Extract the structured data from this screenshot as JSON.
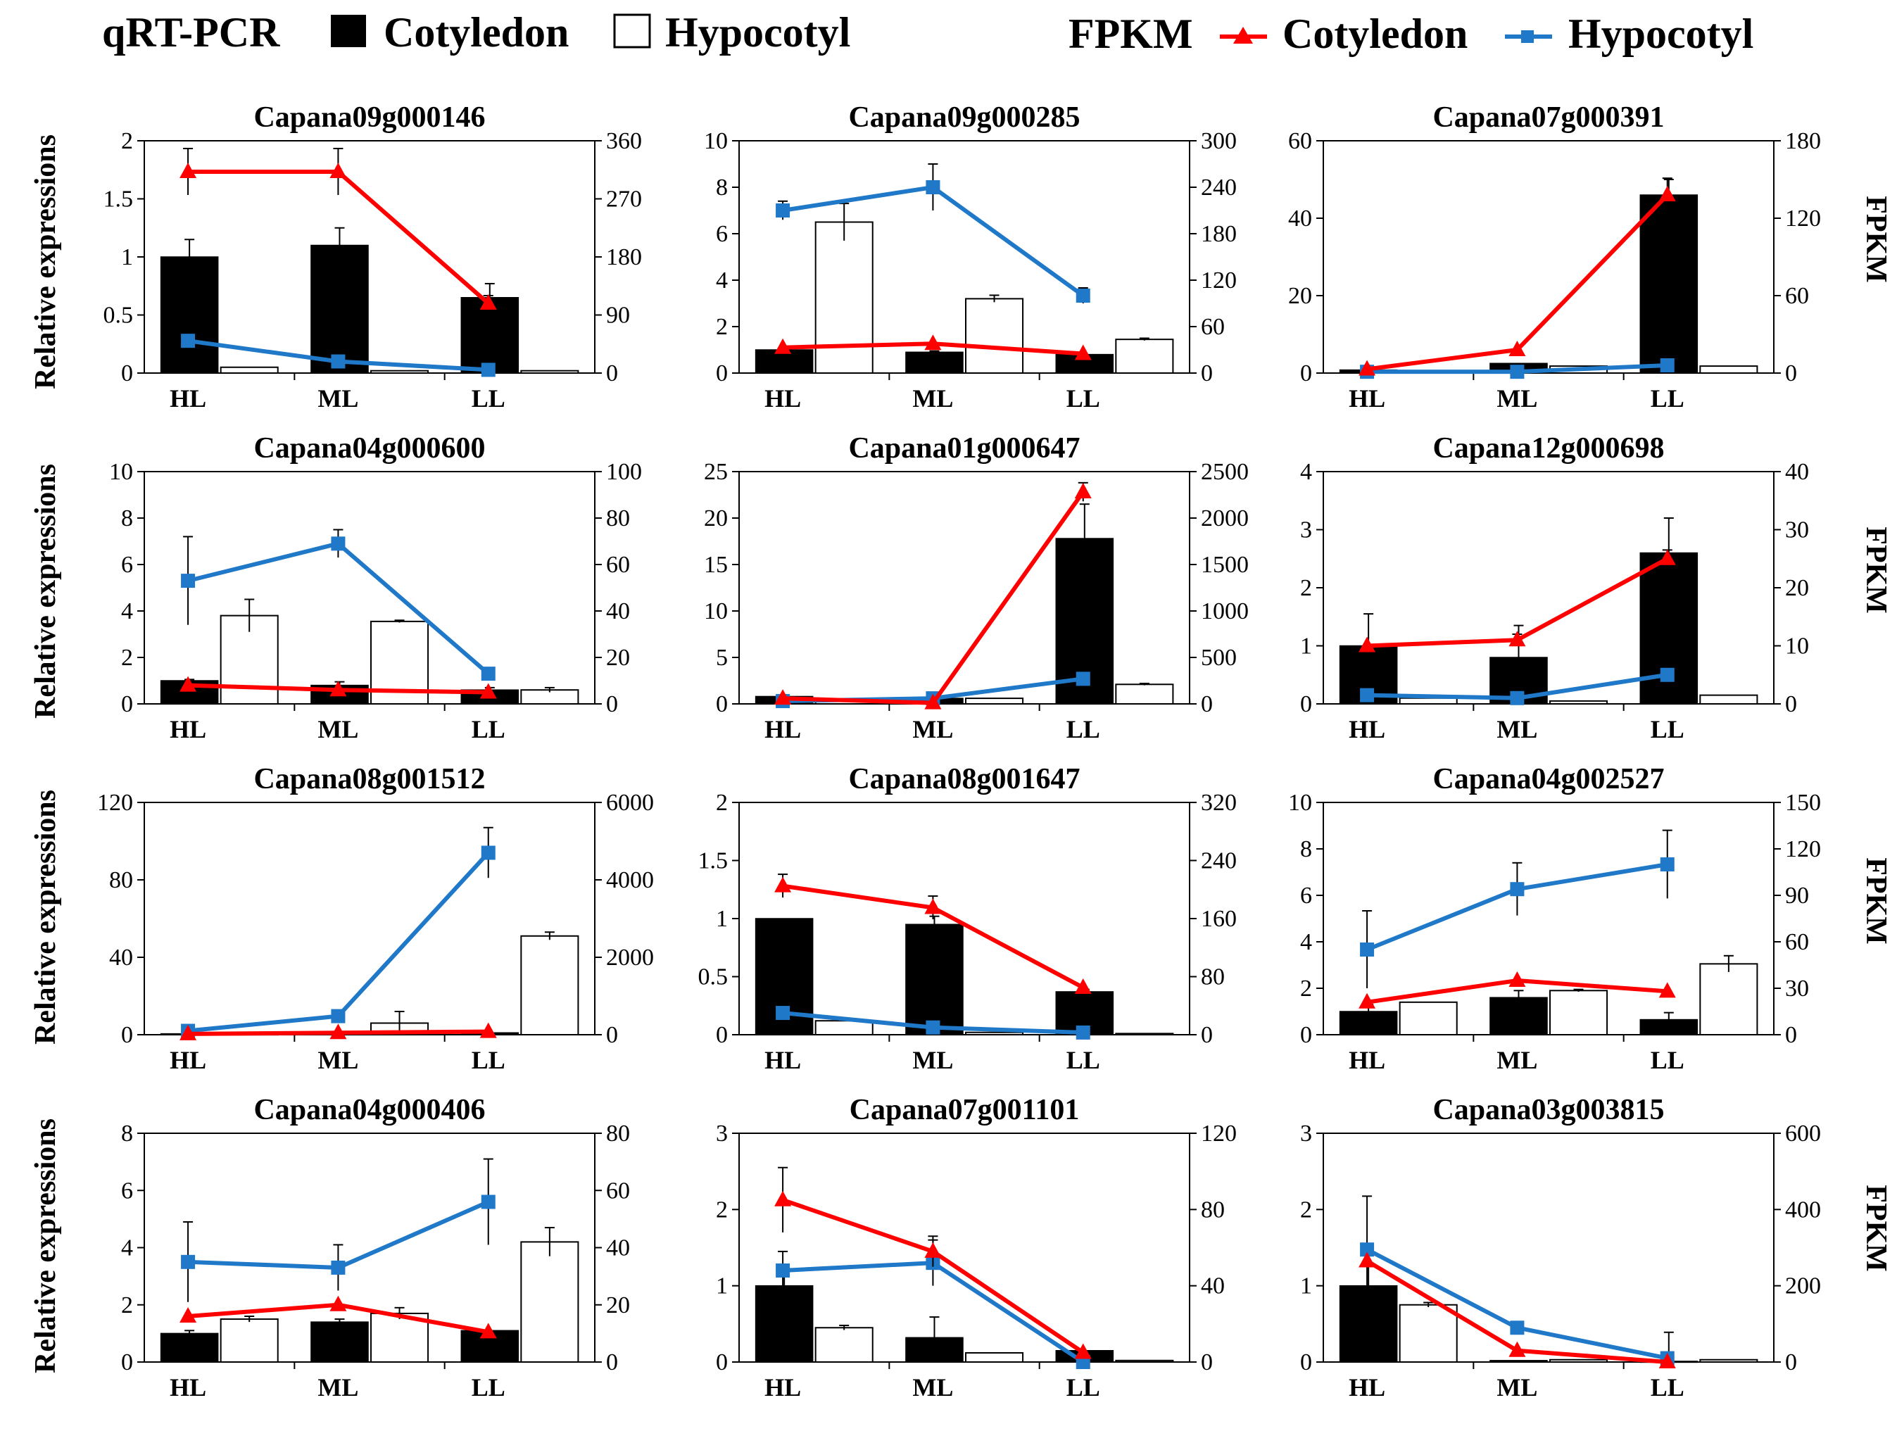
{
  "legend": {
    "qrt_label": "qRT-PCR",
    "qrt_cotyledon": "Cotyledon",
    "qrt_hypocotyl": "Hypocotyl",
    "fpkm_label": "FPKM",
    "fpkm_cotyledon": "Cotyledon",
    "fpkm_hypocotyl": "Hypocotyl"
  },
  "y_left_label": "Relative expressions",
  "y_right_label": "FPKM",
  "colors": {
    "cotyledon_bar": "#000000",
    "hypocotyl_bar": "#ffffff",
    "cotyledon_line": "#ff0000",
    "hypocotyl_line": "#1f78c8"
  },
  "chart_data": [
    {
      "type": "bar+line",
      "title": "Capana09g000146",
      "categories": [
        "HL",
        "ML",
        "LL"
      ],
      "ylim": [
        0,
        2
      ],
      "yticks": [
        "0",
        "0.5",
        "1",
        "1.5",
        "2"
      ],
      "y2lim": [
        0,
        360
      ],
      "y2ticks": [
        "0",
        "90",
        "180",
        "270",
        "360"
      ],
      "series": [
        {
          "name": "qRT-PCR Cotyledon",
          "values": [
            1.0,
            1.1,
            0.65
          ],
          "err": [
            0.15,
            0.15,
            0.12
          ]
        },
        {
          "name": "qRT-PCR Hypocotyl",
          "values": [
            0.05,
            0.02,
            0.02
          ],
          "err": [
            0,
            0,
            0
          ]
        },
        {
          "name": "FPKM Cotyledon",
          "values": [
            312,
            312,
            108
          ],
          "err": [
            36,
            36,
            12
          ]
        },
        {
          "name": "FPKM Hypocotyl",
          "values": [
            50,
            18,
            5
          ],
          "err": [
            0,
            0,
            0
          ]
        }
      ]
    },
    {
      "type": "bar+line",
      "title": "Capana09g000285",
      "categories": [
        "HL",
        "ML",
        "LL"
      ],
      "ylim": [
        0,
        10
      ],
      "yticks": [
        "0",
        "2",
        "4",
        "6",
        "8",
        "10"
      ],
      "y2lim": [
        0,
        300
      ],
      "y2ticks": [
        "0",
        "60",
        "120",
        "180",
        "240",
        "300"
      ],
      "series": [
        {
          "name": "qRT-PCR Cotyledon",
          "values": [
            1.0,
            0.9,
            0.8
          ],
          "err": [
            0,
            0.05,
            0
          ],
          "dummy": 0
        },
        {
          "name": "qRT-PCR Hypocotyl",
          "values": [
            6.5,
            3.2,
            1.45
          ],
          "err": [
            0.8,
            0.15,
            0.05
          ]
        },
        {
          "name": "FPKM Cotyledon",
          "values": [
            33,
            38,
            25
          ],
          "err": [
            0,
            0,
            0
          ]
        },
        {
          "name": "FPKM Hypocotyl",
          "values": [
            210,
            240,
            100
          ],
          "err": [
            12,
            30,
            10
          ]
        }
      ]
    },
    {
      "type": "bar+line",
      "title": "Capana07g000391",
      "categories": [
        "HL",
        "ML",
        "LL"
      ],
      "ylim": [
        0,
        60
      ],
      "yticks": [
        "0",
        "20",
        "40",
        "60"
      ],
      "y2lim": [
        0,
        180
      ],
      "y2ticks": [
        "0",
        "60",
        "120",
        "180"
      ],
      "series": [
        {
          "name": "qRT-PCR Cotyledon",
          "values": [
            0.8,
            2.5,
            46
          ],
          "err": [
            0,
            0,
            4
          ]
        },
        {
          "name": "qRT-PCR Hypocotyl",
          "values": [
            0.3,
            1.8,
            1.8
          ],
          "err": [
            0,
            0,
            0
          ]
        },
        {
          "name": "FPKM Cotyledon",
          "values": [
            3,
            18,
            138
          ],
          "err": [
            0,
            0,
            13
          ]
        },
        {
          "name": "FPKM Hypocotyl",
          "values": [
            1,
            1,
            6
          ],
          "err": [
            0,
            0,
            0
          ]
        }
      ]
    },
    {
      "type": "bar+line",
      "title": "Capana04g000600",
      "categories": [
        "HL",
        "ML",
        "LL"
      ],
      "ylim": [
        0,
        10
      ],
      "yticks": [
        "0",
        "2",
        "4",
        "6",
        "8",
        "10"
      ],
      "y2lim": [
        0,
        100
      ],
      "y2ticks": [
        "0",
        "20",
        "40",
        "60",
        "80",
        "100"
      ],
      "series": [
        {
          "name": "qRT-PCR Cotyledon",
          "values": [
            1.0,
            0.8,
            0.6
          ],
          "err": [
            0.05,
            0.15,
            0.1
          ]
        },
        {
          "name": "qRT-PCR Hypocotyl",
          "values": [
            3.8,
            3.55,
            0.6
          ],
          "err": [
            0.7,
            0.05,
            0.1
          ]
        },
        {
          "name": "FPKM Cotyledon",
          "values": [
            8,
            6,
            5
          ],
          "err": [
            0,
            0,
            0
          ]
        },
        {
          "name": "FPKM Hypocotyl",
          "values": [
            53,
            69,
            13
          ],
          "err": [
            19,
            6,
            0
          ]
        }
      ]
    },
    {
      "type": "bar+line",
      "title": "Capana01g000647",
      "categories": [
        "HL",
        "ML",
        "LL"
      ],
      "ylim": [
        0,
        25
      ],
      "yticks": [
        "0",
        "5",
        "10",
        "15",
        "20",
        "25"
      ],
      "y2lim": [
        0,
        2500
      ],
      "y2ticks": [
        "0",
        "500",
        "1000",
        "1500",
        "2000",
        "2500"
      ],
      "series": [
        {
          "name": "qRT-PCR Cotyledon",
          "values": [
            0.8,
            0.6,
            17.8
          ],
          "err": [
            0,
            0.2,
            3.7
          ]
        },
        {
          "name": "qRT-PCR Hypocotyl",
          "values": [
            0.5,
            0.6,
            2.1
          ],
          "err": [
            0,
            0,
            0.1
          ]
        },
        {
          "name": "FPKM Cotyledon",
          "values": [
            60,
            10,
            2280
          ],
          "err": [
            0,
            0,
            100
          ]
        },
        {
          "name": "FPKM Hypocotyl",
          "values": [
            30,
            60,
            270
          ],
          "err": [
            0,
            0,
            0
          ]
        }
      ]
    },
    {
      "type": "bar+line",
      "title": "Capana12g000698",
      "categories": [
        "HL",
        "ML",
        "LL"
      ],
      "ylim": [
        0,
        4
      ],
      "yticks": [
        "0",
        "1",
        "2",
        "3",
        "4"
      ],
      "y2lim": [
        0,
        40
      ],
      "y2ticks": [
        "0",
        "10",
        "20",
        "30",
        "40"
      ],
      "series": [
        {
          "name": "qRT-PCR Cotyledon",
          "values": [
            1.0,
            0.8,
            2.6
          ],
          "err": [
            0.55,
            0.55,
            0.6
          ]
        },
        {
          "name": "qRT-PCR Hypocotyl",
          "values": [
            0.1,
            0.05,
            0.15
          ],
          "err": [
            0,
            0,
            0
          ]
        },
        {
          "name": "FPKM Cotyledon",
          "values": [
            10,
            11,
            25
          ],
          "err": [
            0,
            1,
            1.5
          ]
        },
        {
          "name": "FPKM Hypocotyl",
          "values": [
            1.5,
            1,
            5
          ],
          "err": [
            0,
            0,
            0
          ]
        }
      ]
    },
    {
      "type": "bar+line",
      "title": "Capana08g001512",
      "categories": [
        "HL",
        "ML",
        "LL"
      ],
      "ylim": [
        0,
        120
      ],
      "yticks": [
        "0",
        "40",
        "80",
        "120"
      ],
      "y2lim": [
        0,
        6000
      ],
      "y2ticks": [
        "0",
        "2000",
        "4000",
        "6000"
      ],
      "series": [
        {
          "name": "qRT-PCR Cotyledon",
          "values": [
            0.5,
            1,
            1
          ],
          "err": [
            0,
            0,
            0
          ]
        },
        {
          "name": "qRT-PCR Hypocotyl",
          "values": [
            0.5,
            6,
            51
          ],
          "err": [
            0,
            6,
            2
          ]
        },
        {
          "name": "FPKM Cotyledon",
          "values": [
            20,
            50,
            80
          ],
          "err": [
            0,
            0,
            0
          ]
        },
        {
          "name": "FPKM Hypocotyl",
          "values": [
            100,
            480,
            4700
          ],
          "err": [
            0,
            0,
            650
          ]
        }
      ]
    },
    {
      "type": "bar+line",
      "title": "Capana08g001647",
      "categories": [
        "HL",
        "ML",
        "LL"
      ],
      "ylim": [
        0,
        2
      ],
      "yticks": [
        "0",
        "0.5",
        "1",
        "1.5",
        "2"
      ],
      "y2lim": [
        0,
        320
      ],
      "y2ticks": [
        "0",
        "80",
        "160",
        "240",
        "320"
      ],
      "series": [
        {
          "name": "qRT-PCR Cotyledon",
          "values": [
            1.0,
            0.95,
            0.37
          ],
          "err": [
            0,
            0.07,
            0.02
          ]
        },
        {
          "name": "qRT-PCR Hypocotyl",
          "values": [
            0.12,
            0.02,
            0.01
          ],
          "err": [
            0,
            0,
            0
          ]
        },
        {
          "name": "FPKM Cotyledon",
          "values": [
            205,
            175,
            65
          ],
          "err": [
            16,
            16,
            0
          ]
        },
        {
          "name": "FPKM Hypocotyl",
          "values": [
            30,
            10,
            3
          ],
          "err": [
            0,
            0,
            0
          ]
        }
      ]
    },
    {
      "type": "bar+line",
      "title": "Capana04g002527",
      "categories": [
        "HL",
        "ML",
        "LL"
      ],
      "ylim": [
        0,
        10
      ],
      "yticks": [
        "0",
        "2",
        "4",
        "6",
        "8",
        "10"
      ],
      "y2lim": [
        0,
        150
      ],
      "y2ticks": [
        "0",
        "30",
        "60",
        "90",
        "120",
        "150"
      ],
      "series": [
        {
          "name": "qRT-PCR Cotyledon",
          "values": [
            1.0,
            1.6,
            0.65
          ],
          "err": [
            0.3,
            0.3,
            0.3
          ]
        },
        {
          "name": "qRT-PCR Hypocotyl",
          "values": [
            1.4,
            1.9,
            3.05
          ],
          "err": [
            0,
            0.05,
            0.35
          ]
        },
        {
          "name": "FPKM Cotyledon",
          "values": [
            21,
            35,
            28
          ],
          "err": [
            0,
            0,
            0
          ]
        },
        {
          "name": "FPKM Hypocotyl",
          "values": [
            55,
            94,
            110
          ],
          "err": [
            25,
            17,
            22
          ]
        }
      ]
    },
    {
      "type": "bar+line",
      "title": "Capana04g000406",
      "categories": [
        "HL",
        "ML",
        "LL"
      ],
      "ylim": [
        0,
        8
      ],
      "yticks": [
        "0",
        "2",
        "4",
        "6",
        "8"
      ],
      "y2lim": [
        0,
        80
      ],
      "y2ticks": [
        "0",
        "20",
        "40",
        "60",
        "80"
      ],
      "series": [
        {
          "name": "qRT-PCR Cotyledon",
          "values": [
            1.0,
            1.4,
            1.1
          ],
          "err": [
            0.1,
            0.1,
            0
          ]
        },
        {
          "name": "qRT-PCR Hypocotyl",
          "values": [
            1.5,
            1.7,
            4.2
          ],
          "err": [
            0.1,
            0.2,
            0.5
          ]
        },
        {
          "name": "FPKM Cotyledon",
          "values": [
            16,
            20,
            10.5
          ],
          "err": [
            0,
            0,
            0
          ]
        },
        {
          "name": "FPKM Hypocotyl",
          "values": [
            35,
            33,
            56
          ],
          "err": [
            14,
            8,
            15
          ]
        }
      ]
    },
    {
      "type": "bar+line",
      "title": "Capana07g001101",
      "categories": [
        "HL",
        "ML",
        "LL"
      ],
      "ylim": [
        0,
        3
      ],
      "yticks": [
        "0",
        "1",
        "2",
        "3"
      ],
      "y2lim": [
        0,
        120
      ],
      "y2ticks": [
        "0",
        "40",
        "80",
        "120"
      ],
      "series": [
        {
          "name": "qRT-PCR Cotyledon",
          "values": [
            1.0,
            0.32,
            0.15
          ],
          "err": [
            0.25,
            0.27,
            0
          ]
        },
        {
          "name": "qRT-PCR Hypocotyl",
          "values": [
            0.45,
            0.12,
            0.02
          ],
          "err": [
            0.03,
            0,
            0
          ]
        },
        {
          "name": "FPKM Cotyledon",
          "values": [
            85,
            58,
            5
          ],
          "err": [
            17,
            8,
            0
          ]
        },
        {
          "name": "FPKM Hypocotyl",
          "values": [
            48,
            52,
            0
          ],
          "err": [
            10,
            12,
            0
          ]
        }
      ]
    },
    {
      "type": "bar+line",
      "title": "Capana03g003815",
      "categories": [
        "HL",
        "ML",
        "LL"
      ],
      "ylim": [
        0,
        3
      ],
      "yticks": [
        "0",
        "1",
        "2",
        "3"
      ],
      "y2lim": [
        0,
        600
      ],
      "y2ticks": [
        "0",
        "200",
        "400",
        "600"
      ],
      "series": [
        {
          "name": "qRT-PCR Cotyledon",
          "values": [
            1.0,
            0.02,
            0.01
          ],
          "err": [
            0.3,
            0,
            0.38
          ]
        },
        {
          "name": "qRT-PCR Hypocotyl",
          "values": [
            0.75,
            0.03,
            0.03
          ],
          "err": [
            0.03,
            0,
            0
          ]
        },
        {
          "name": "FPKM Cotyledon",
          "values": [
            265,
            30,
            0
          ],
          "err": [
            0,
            0,
            0
          ]
        },
        {
          "name": "FPKM Hypocotyl",
          "values": [
            295,
            90,
            10
          ],
          "err": [
            140,
            0,
            0
          ]
        }
      ]
    }
  ]
}
